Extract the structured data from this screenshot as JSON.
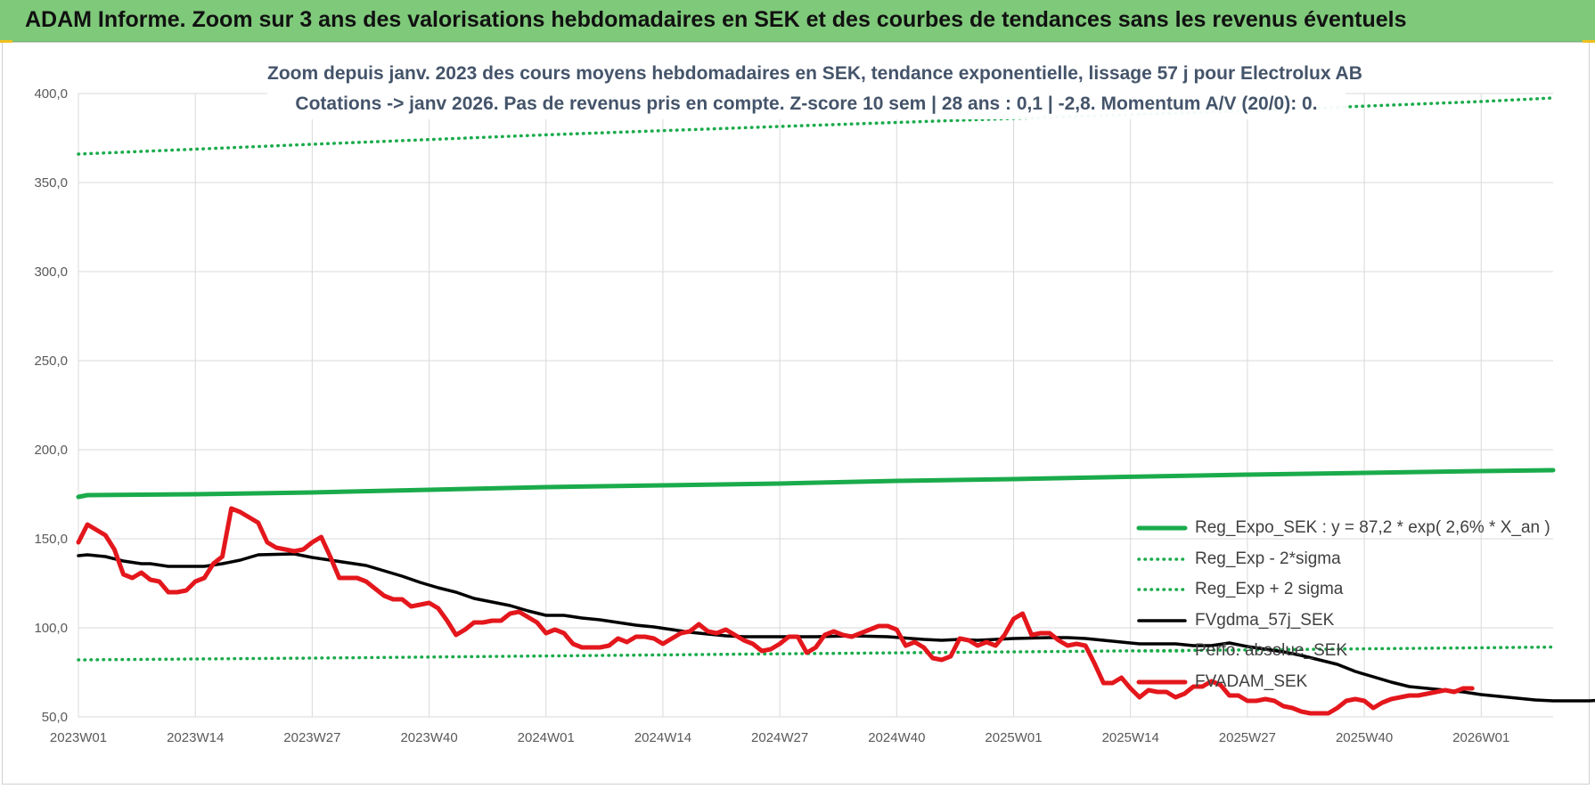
{
  "banner": {
    "title": "ADAM Informe. Zoom sur 3 ans des valorisations hebdomadaires en SEK et des courbes de tendances sans les revenus éventuels"
  },
  "chart_data": {
    "type": "line",
    "title": "Zoom depuis janv. 2023 des cours moyens hebdomadaires en SEK, tendance exponentielle, lissage 57 j pour Electrolux AB",
    "subtitle": "Cotations -> janv 2026. Pas de revenus pris en compte. Z-score 10 sem | 28 ans : 0,1 | -2,8. Momentum A/V (20/0): 0.",
    "ylim": [
      50,
      400
    ],
    "yticks": [
      "50,0",
      "100,0",
      "150,0",
      "200,0",
      "250,0",
      "300,0",
      "350,0",
      "400,0"
    ],
    "xticks": [
      "2023W01",
      "2023W14",
      "2023W27",
      "2023W40",
      "2024W01",
      "2024W14",
      "2024W27",
      "2024W40",
      "2025W01",
      "2025W14",
      "2025W27",
      "2025W40",
      "2026W01"
    ],
    "grid": true,
    "legend_position": "bottom-right",
    "series": [
      {
        "name": "Reg_Expo_SEK : y = 87,2 * exp( 2,6% * X_an )",
        "color": "#1aab4b",
        "style": "solid-thick",
        "points": [
          [
            0,
            173.5
          ],
          [
            1,
            174.5
          ],
          [
            13,
            175.0
          ],
          [
            26,
            176.0
          ],
          [
            39,
            177.5
          ],
          [
            52,
            179.0
          ],
          [
            65,
            180.0
          ],
          [
            78,
            181.0
          ],
          [
            91,
            182.5
          ],
          [
            104,
            183.5
          ],
          [
            117,
            184.8
          ],
          [
            130,
            186.0
          ],
          [
            143,
            187.0
          ],
          [
            156,
            188.0
          ],
          [
            164,
            188.5
          ]
        ]
      },
      {
        "name": "Reg_Exp - 2*sigma",
        "color": "#1aab4b",
        "style": "dotted",
        "points": [
          [
            0,
            82.0
          ],
          [
            26,
            83.0
          ],
          [
            52,
            84.2
          ],
          [
            78,
            85.4
          ],
          [
            104,
            86.5
          ],
          [
            130,
            87.6
          ],
          [
            156,
            88.8
          ],
          [
            164,
            89.2
          ]
        ]
      },
      {
        "name": "Reg_Exp + 2 sigma",
        "color": "#1aab4b",
        "style": "dotted",
        "points": [
          [
            0,
            366.0
          ],
          [
            26,
            371.5
          ],
          [
            52,
            376.8
          ],
          [
            78,
            381.5
          ],
          [
            104,
            386.0
          ],
          [
            130,
            390.3
          ],
          [
            156,
            395.5
          ],
          [
            164,
            397.5
          ]
        ]
      },
      {
        "name": "FVgdma_57j_SEK",
        "color": "#000000",
        "style": "solid",
        "points": [
          [
            0,
            140.5
          ],
          [
            1,
            141.0
          ],
          [
            3,
            140.0
          ],
          [
            5,
            137.5
          ],
          [
            7,
            136.0
          ],
          [
            8,
            136.0
          ],
          [
            10,
            134.5
          ],
          [
            14,
            134.5
          ],
          [
            16,
            136.0
          ],
          [
            18,
            138.0
          ],
          [
            20,
            141.0
          ],
          [
            24,
            141.5
          ],
          [
            26,
            139.5
          ],
          [
            28,
            138.0
          ],
          [
            30,
            136.5
          ],
          [
            32,
            135.0
          ],
          [
            34,
            132.0
          ],
          [
            36,
            129.0
          ],
          [
            38,
            125.5
          ],
          [
            40,
            122.5
          ],
          [
            42,
            120.0
          ],
          [
            44,
            116.5
          ],
          [
            46,
            114.5
          ],
          [
            48,
            112.5
          ],
          [
            50,
            109.5
          ],
          [
            52,
            107.0
          ],
          [
            54,
            107.0
          ],
          [
            56,
            105.5
          ],
          [
            58,
            104.5
          ],
          [
            60,
            103.0
          ],
          [
            62,
            101.5
          ],
          [
            64,
            100.5
          ],
          [
            66,
            99.0
          ],
          [
            68,
            97.5
          ],
          [
            70,
            96.5
          ],
          [
            72,
            95.5
          ],
          [
            74,
            95.0
          ],
          [
            78,
            95.0
          ],
          [
            82,
            95.0
          ],
          [
            86,
            95.5
          ],
          [
            90,
            95.0
          ],
          [
            94,
            93.5
          ],
          [
            96,
            93.0
          ],
          [
            98,
            93.5
          ],
          [
            100,
            93.0
          ],
          [
            102,
            93.5
          ],
          [
            104,
            94.0
          ],
          [
            108,
            94.5
          ],
          [
            110,
            94.5
          ],
          [
            112,
            94.0
          ],
          [
            114,
            93.0
          ],
          [
            116,
            92.0
          ],
          [
            118,
            91.0
          ],
          [
            122,
            91.0
          ],
          [
            124,
            90.0
          ],
          [
            126,
            90.0
          ],
          [
            128,
            91.5
          ],
          [
            130,
            89.5
          ],
          [
            132,
            88.0
          ],
          [
            134,
            86.5
          ],
          [
            136,
            84.5
          ],
          [
            138,
            82.0
          ],
          [
            140,
            79.5
          ],
          [
            142,
            75.5
          ],
          [
            144,
            72.5
          ],
          [
            146,
            69.5
          ],
          [
            148,
            67.0
          ],
          [
            150,
            66.0
          ],
          [
            152,
            65.0
          ],
          [
            154,
            64.0
          ],
          [
            156,
            62.5
          ],
          [
            158,
            61.5
          ],
          [
            160,
            60.5
          ],
          [
            162,
            59.5
          ],
          [
            164,
            59.0
          ],
          [
            168,
            59.0
          ],
          [
            170,
            59.5
          ],
          [
            172,
            60.0
          ],
          [
            174,
            60.5
          ],
          [
            176,
            61.0
          ],
          [
            178,
            61.5
          ],
          [
            180,
            62.0
          ],
          [
            182,
            62.5
          ],
          [
            184,
            63.5
          ],
          [
            186,
            64.0
          ],
          [
            188,
            64.5
          ],
          [
            190,
            65.0
          ]
        ]
      },
      {
        "name": "Perfo. absolue_SEK",
        "color": "#1aab4b",
        "style": "dotted",
        "points": []
      },
      {
        "name": "FVADAM_SEK",
        "color": "#e3171c",
        "style": "solid-thick",
        "points": [
          [
            0,
            148
          ],
          [
            1,
            158
          ],
          [
            2,
            155
          ],
          [
            3,
            152
          ],
          [
            4,
            144
          ],
          [
            5,
            130
          ],
          [
            6,
            128
          ],
          [
            7,
            131
          ],
          [
            8,
            127
          ],
          [
            9,
            126
          ],
          [
            10,
            120
          ],
          [
            11,
            120
          ],
          [
            12,
            121
          ],
          [
            13,
            126
          ],
          [
            14,
            128
          ],
          [
            15,
            136
          ],
          [
            16,
            140
          ],
          [
            17,
            167
          ],
          [
            18,
            165
          ],
          [
            19,
            162
          ],
          [
            20,
            159
          ],
          [
            21,
            148
          ],
          [
            22,
            145
          ],
          [
            23,
            144
          ],
          [
            24,
            143
          ],
          [
            25,
            144
          ],
          [
            26,
            148
          ],
          [
            27,
            151
          ],
          [
            28,
            140
          ],
          [
            29,
            128
          ],
          [
            30,
            128
          ],
          [
            31,
            128
          ],
          [
            32,
            126
          ],
          [
            33,
            122
          ],
          [
            34,
            118
          ],
          [
            35,
            116
          ],
          [
            36,
            116
          ],
          [
            37,
            112
          ],
          [
            38,
            113
          ],
          [
            39,
            114
          ],
          [
            40,
            111
          ],
          [
            41,
            104
          ],
          [
            42,
            96
          ],
          [
            43,
            99
          ],
          [
            44,
            103
          ],
          [
            45,
            103
          ],
          [
            46,
            104
          ],
          [
            47,
            104
          ],
          [
            48,
            108
          ],
          [
            49,
            109
          ],
          [
            50,
            106
          ],
          [
            51,
            103
          ],
          [
            52,
            97
          ],
          [
            53,
            99
          ],
          [
            54,
            97
          ],
          [
            55,
            91
          ],
          [
            56,
            89
          ],
          [
            57,
            89
          ],
          [
            58,
            89
          ],
          [
            59,
            90
          ],
          [
            60,
            94
          ],
          [
            61,
            92
          ],
          [
            62,
            95
          ],
          [
            63,
            95
          ],
          [
            64,
            94
          ],
          [
            65,
            91
          ],
          [
            66,
            94
          ],
          [
            67,
            97
          ],
          [
            68,
            98
          ],
          [
            69,
            102
          ],
          [
            70,
            98
          ],
          [
            71,
            97
          ],
          [
            72,
            99
          ],
          [
            73,
            96
          ],
          [
            74,
            93
          ],
          [
            75,
            91
          ],
          [
            76,
            87
          ],
          [
            77,
            88
          ],
          [
            78,
            91
          ],
          [
            79,
            95
          ],
          [
            80,
            95
          ],
          [
            81,
            86
          ],
          [
            82,
            89
          ],
          [
            83,
            96
          ],
          [
            84,
            98
          ],
          [
            85,
            96
          ],
          [
            86,
            95
          ],
          [
            87,
            97
          ],
          [
            88,
            99
          ],
          [
            89,
            101
          ],
          [
            90,
            101
          ],
          [
            91,
            99
          ],
          [
            92,
            90
          ],
          [
            93,
            92
          ],
          [
            94,
            89
          ],
          [
            95,
            83
          ],
          [
            96,
            82
          ],
          [
            97,
            84
          ],
          [
            98,
            94
          ],
          [
            99,
            93
          ],
          [
            100,
            90
          ],
          [
            101,
            92
          ],
          [
            102,
            90
          ],
          [
            103,
            96
          ],
          [
            104,
            105
          ],
          [
            105,
            108
          ],
          [
            106,
            96
          ],
          [
            107,
            97
          ],
          [
            108,
            97
          ],
          [
            109,
            93
          ],
          [
            110,
            90
          ],
          [
            111,
            91
          ],
          [
            112,
            90
          ],
          [
            113,
            80
          ],
          [
            114,
            69
          ],
          [
            115,
            69
          ],
          [
            116,
            72
          ],
          [
            117,
            66
          ],
          [
            118,
            61
          ],
          [
            119,
            65
          ],
          [
            120,
            64
          ],
          [
            121,
            64
          ],
          [
            122,
            61
          ],
          [
            123,
            63
          ],
          [
            124,
            67
          ],
          [
            125,
            67
          ],
          [
            126,
            70
          ],
          [
            127,
            68
          ],
          [
            128,
            62
          ],
          [
            129,
            62
          ],
          [
            130,
            59
          ],
          [
            131,
            59
          ],
          [
            132,
            60
          ],
          [
            133,
            59
          ],
          [
            134,
            56
          ],
          [
            135,
            55
          ],
          [
            136,
            53
          ],
          [
            137,
            52
          ],
          [
            138,
            52
          ],
          [
            139,
            52
          ],
          [
            140,
            55
          ],
          [
            141,
            59
          ],
          [
            142,
            60
          ],
          [
            143,
            59
          ],
          [
            144,
            55
          ],
          [
            145,
            58
          ],
          [
            146,
            60
          ],
          [
            147,
            61
          ],
          [
            148,
            62
          ],
          [
            149,
            62
          ],
          [
            150,
            63
          ],
          [
            151,
            64
          ],
          [
            152,
            65
          ],
          [
            153,
            64
          ],
          [
            154,
            66
          ],
          [
            155,
            66
          ]
        ]
      }
    ]
  }
}
